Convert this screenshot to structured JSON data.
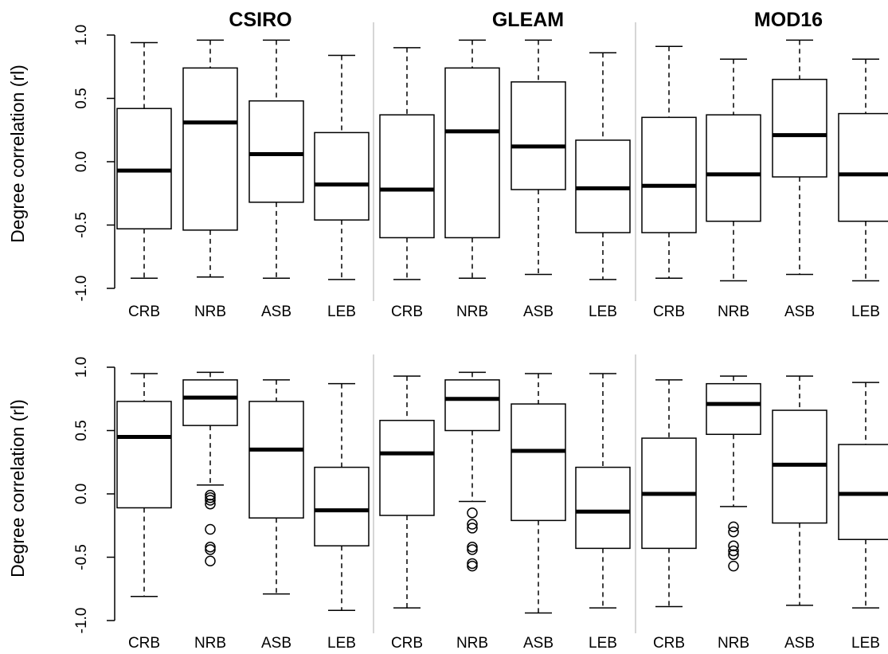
{
  "chart_data": {
    "type": "box",
    "panel_titles": [
      "CSIRO",
      "GLEAM",
      "MOD16"
    ],
    "categories": [
      "CRB",
      "NRB",
      "ASB",
      "LEB"
    ],
    "rows": [
      {
        "ylabel": "Degree correlation (rl)",
        "ylim": [
          -1.0,
          1.0
        ],
        "yticks": [
          "-1.0",
          "-0.5",
          "0.0",
          "0.5",
          "1.0"
        ],
        "panels": [
          {
            "title": "CSIRO",
            "boxes": [
              {
                "category": "CRB",
                "min": -0.92,
                "q1": -0.53,
                "median": -0.07,
                "q3": 0.42,
                "max": 0.94,
                "outliers": []
              },
              {
                "category": "NRB",
                "min": -0.91,
                "q1": -0.54,
                "median": 0.31,
                "q3": 0.74,
                "max": 0.96,
                "outliers": []
              },
              {
                "category": "ASB",
                "min": -0.92,
                "q1": -0.32,
                "median": 0.06,
                "q3": 0.48,
                "max": 0.96,
                "outliers": []
              },
              {
                "category": "LEB",
                "min": -0.93,
                "q1": -0.46,
                "median": -0.18,
                "q3": 0.23,
                "max": 0.84,
                "outliers": []
              }
            ]
          },
          {
            "title": "GLEAM",
            "boxes": [
              {
                "category": "CRB",
                "min": -0.93,
                "q1": -0.6,
                "median": -0.22,
                "q3": 0.37,
                "max": 0.9,
                "outliers": []
              },
              {
                "category": "NRB",
                "min": -0.92,
                "q1": -0.6,
                "median": 0.24,
                "q3": 0.74,
                "max": 0.96,
                "outliers": []
              },
              {
                "category": "ASB",
                "min": -0.89,
                "q1": -0.22,
                "median": 0.12,
                "q3": 0.63,
                "max": 0.96,
                "outliers": []
              },
              {
                "category": "LEB",
                "min": -0.93,
                "q1": -0.56,
                "median": -0.21,
                "q3": 0.17,
                "max": 0.86,
                "outliers": []
              }
            ]
          },
          {
            "title": "MOD16",
            "boxes": [
              {
                "category": "CRB",
                "min": -0.92,
                "q1": -0.56,
                "median": -0.19,
                "q3": 0.35,
                "max": 0.91,
                "outliers": []
              },
              {
                "category": "NRB",
                "min": -0.94,
                "q1": -0.47,
                "median": -0.1,
                "q3": 0.37,
                "max": 0.81,
                "outliers": []
              },
              {
                "category": "ASB",
                "min": -0.89,
                "q1": -0.12,
                "median": 0.21,
                "q3": 0.65,
                "max": 0.96,
                "outliers": []
              },
              {
                "category": "LEB",
                "min": -0.94,
                "q1": -0.47,
                "median": -0.1,
                "q3": 0.38,
                "max": 0.81,
                "outliers": []
              }
            ]
          }
        ]
      },
      {
        "ylabel": "Degree correlation (rl)",
        "ylim": [
          -1.0,
          1.0
        ],
        "yticks": [
          "-1.0",
          "-0.5",
          "0.0",
          "0.5",
          "1.0"
        ],
        "panels": [
          {
            "title": "CSIRO",
            "boxes": [
              {
                "category": "CRB",
                "min": -0.81,
                "q1": -0.11,
                "median": 0.45,
                "q3": 0.73,
                "max": 0.95,
                "outliers": []
              },
              {
                "category": "NRB",
                "min": 0.07,
                "q1": 0.54,
                "median": 0.76,
                "q3": 0.9,
                "max": 0.96,
                "outliers": [
                  -0.01,
                  -0.03,
                  -0.05,
                  -0.08,
                  -0.28,
                  -0.42,
                  -0.44,
                  -0.53
                ]
              },
              {
                "category": "ASB",
                "min": -0.79,
                "q1": -0.19,
                "median": 0.35,
                "q3": 0.73,
                "max": 0.9,
                "outliers": []
              },
              {
                "category": "LEB",
                "min": -0.92,
                "q1": -0.41,
                "median": -0.13,
                "q3": 0.21,
                "max": 0.87,
                "outliers": []
              }
            ]
          },
          {
            "title": "GLEAM",
            "boxes": [
              {
                "category": "CRB",
                "min": -0.9,
                "q1": -0.17,
                "median": 0.32,
                "q3": 0.58,
                "max": 0.93,
                "outliers": []
              },
              {
                "category": "NRB",
                "min": -0.06,
                "q1": 0.5,
                "median": 0.75,
                "q3": 0.9,
                "max": 0.96,
                "outliers": [
                  -0.15,
                  -0.24,
                  -0.27,
                  -0.42,
                  -0.44,
                  -0.55,
                  -0.57
                ]
              },
              {
                "category": "ASB",
                "min": -0.94,
                "q1": -0.21,
                "median": 0.34,
                "q3": 0.71,
                "max": 0.95,
                "outliers": []
              },
              {
                "category": "LEB",
                "min": -0.9,
                "q1": -0.43,
                "median": -0.14,
                "q3": 0.21,
                "max": 0.95,
                "outliers": []
              }
            ]
          },
          {
            "title": "MOD16",
            "boxes": [
              {
                "category": "CRB",
                "min": -0.89,
                "q1": -0.43,
                "median": 0.0,
                "q3": 0.44,
                "max": 0.9,
                "outliers": []
              },
              {
                "category": "NRB",
                "min": -0.1,
                "q1": 0.47,
                "median": 0.71,
                "q3": 0.87,
                "max": 0.93,
                "outliers": [
                  -0.26,
                  -0.3,
                  -0.41,
                  -0.45,
                  -0.48,
                  -0.57
                ]
              },
              {
                "category": "ASB",
                "min": -0.88,
                "q1": -0.23,
                "median": 0.23,
                "q3": 0.66,
                "max": 0.93,
                "outliers": []
              },
              {
                "category": "LEB",
                "min": -0.9,
                "q1": -0.36,
                "median": 0.0,
                "q3": 0.39,
                "max": 0.88,
                "outliers": []
              }
            ]
          }
        ]
      }
    ],
    "grid": false,
    "legend": "none",
    "colors": {
      "box_stroke": "#000000",
      "median": "#000000",
      "separator": "#c8c8c8"
    }
  }
}
